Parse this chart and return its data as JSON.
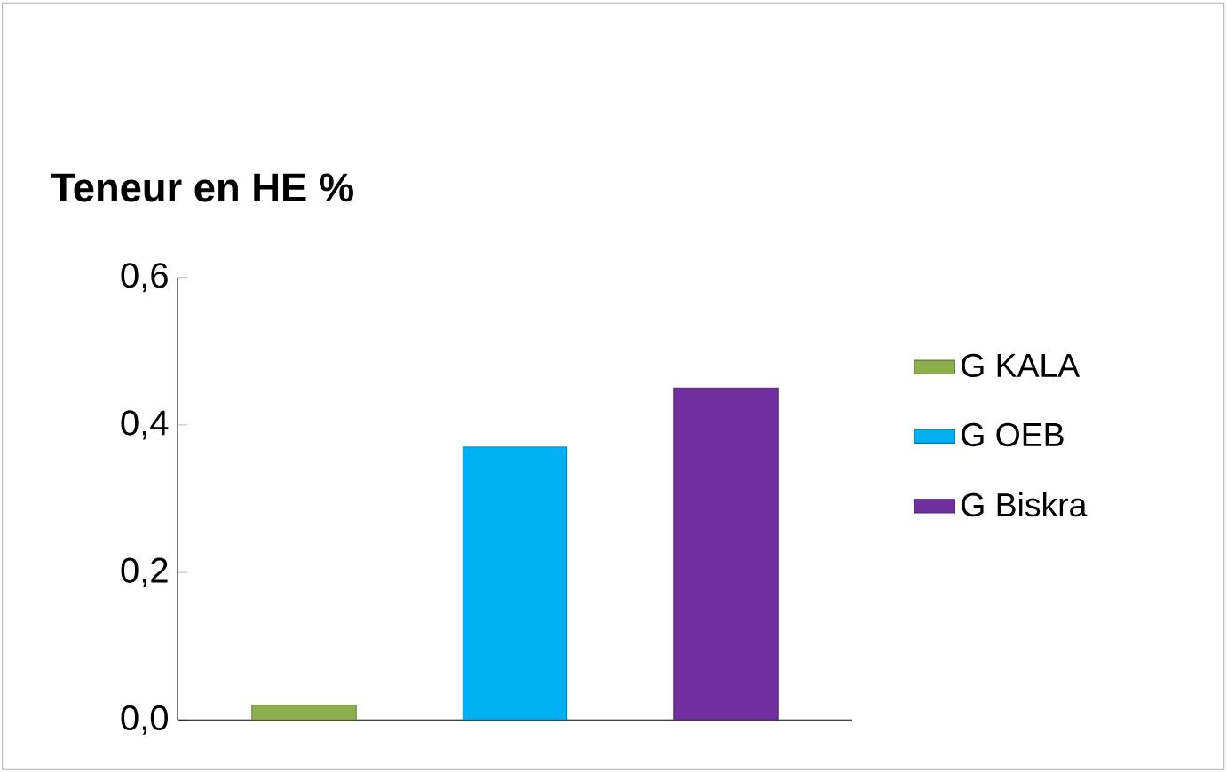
{
  "chart_data": {
    "type": "bar",
    "title": "Teneur en HE %",
    "categories": [
      null,
      null,
      null
    ],
    "series": [
      {
        "name": "G KALA",
        "color": "#8db04f",
        "values": [
          0.02,
          null,
          null
        ]
      },
      {
        "name": "G OEB",
        "color": "#00b0f0",
        "values": [
          null,
          0.37,
          null
        ]
      },
      {
        "name": "G Biskra",
        "color": "#7030a0",
        "values": [
          null,
          null,
          0.45
        ]
      }
    ],
    "ylim": [
      0,
      0.6
    ],
    "yticks": [
      {
        "value": 0,
        "label": "0,0"
      },
      {
        "value": 0.2,
        "label": "0,2"
      },
      {
        "value": 0.4,
        "label": "0,4"
      },
      {
        "value": 0.6,
        "label": "0,6"
      }
    ],
    "legend": "right",
    "grid": false
  }
}
